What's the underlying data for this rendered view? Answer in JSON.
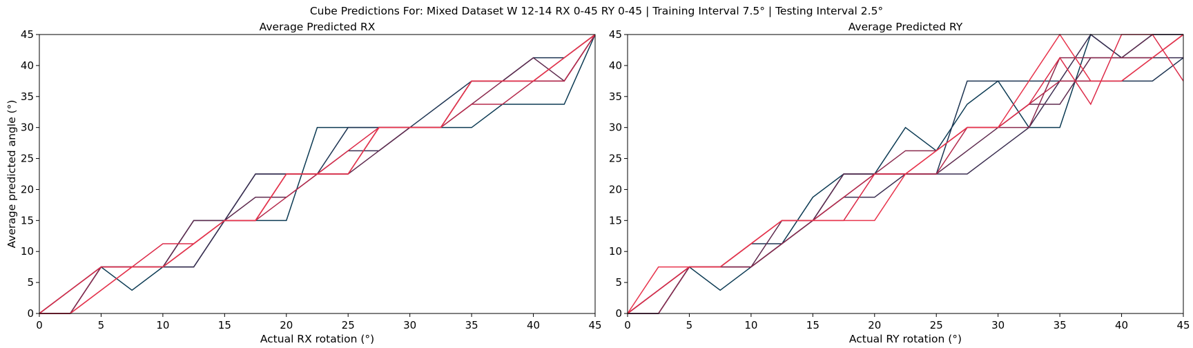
{
  "suptitle": "Cube Predictions For: Mixed Dataset W 12-14 RX 0-45 RY 0-45 | Training Interval 7.5° | Testing Interval 2.5°",
  "chart_data": [
    {
      "type": "line",
      "title": "Average Predicted RX",
      "xlabel": "Actual RX rotation (°)",
      "ylabel": "Average predicted angle (°)",
      "xlim": [
        0,
        45
      ],
      "ylim": [
        0,
        45
      ],
      "xticks": [
        0,
        5,
        10,
        15,
        20,
        25,
        30,
        35,
        40,
        45
      ],
      "yticks": [
        0,
        5,
        10,
        15,
        20,
        25,
        30,
        35,
        40,
        45
      ],
      "grid": false,
      "x": [
        0,
        2.5,
        5,
        7.5,
        10,
        12.5,
        15,
        17.5,
        20,
        22.5,
        25,
        27.5,
        30,
        32.5,
        35,
        37.5,
        40,
        42.5,
        45
      ],
      "series": [
        {
          "color": "#0b3a53",
          "values": [
            0,
            3.75,
            7.5,
            3.75,
            7.5,
            7.5,
            15,
            15,
            15,
            30,
            30,
            30,
            30,
            30,
            30,
            33.75,
            33.75,
            33.75,
            45
          ]
        },
        {
          "color": "#1d3452",
          "values": [
            0,
            0,
            7.5,
            7.5,
            7.5,
            15,
            15,
            22.5,
            22.5,
            22.5,
            30,
            30,
            30,
            33.75,
            37.5,
            37.5,
            41.25,
            41.25,
            45
          ]
        },
        {
          "color": "#3a2d50",
          "values": [
            0,
            0,
            7.5,
            7.5,
            7.5,
            7.5,
            15,
            22.5,
            22.5,
            22.5,
            26.25,
            26.25,
            30,
            30,
            37.5,
            37.5,
            37.5,
            41.25,
            45
          ]
        },
        {
          "color": "#5e2a4e",
          "values": [
            0,
            3.75,
            7.5,
            7.5,
            7.5,
            15,
            15,
            18.75,
            18.75,
            22.5,
            22.5,
            26.25,
            30,
            30,
            37.5,
            37.5,
            41.25,
            37.5,
            45
          ]
        },
        {
          "color": "#8a2a4e",
          "values": [
            0,
            0,
            7.5,
            7.5,
            7.5,
            11.25,
            15,
            15,
            22.5,
            22.5,
            22.5,
            30,
            30,
            30,
            33.75,
            37.5,
            37.5,
            37.5,
            45
          ]
        },
        {
          "color": "#b52a4c",
          "values": [
            0,
            0,
            3.75,
            7.5,
            7.5,
            11.25,
            15,
            15,
            18.75,
            22.5,
            22.5,
            30,
            30,
            30,
            33.75,
            33.75,
            37.5,
            37.5,
            45
          ]
        },
        {
          "color": "#dc2a48",
          "values": [
            0,
            3.75,
            7.5,
            7.5,
            11.25,
            11.25,
            15,
            15,
            22.5,
            22.5,
            26.25,
            30,
            30,
            30,
            37.5,
            37.5,
            37.5,
            41.25,
            45
          ]
        },
        {
          "color": "#e8344c",
          "values": [
            0,
            0,
            3.75,
            7.5,
            7.5,
            11.25,
            15,
            15,
            22.5,
            22.5,
            22.5,
            30,
            30,
            30,
            37.5,
            37.5,
            37.5,
            41.25,
            45
          ]
        }
      ]
    },
    {
      "type": "line",
      "title": "Average Predicted RY",
      "xlabel": "Actual RY rotation (°)",
      "ylabel": "",
      "xlim": [
        0,
        45
      ],
      "ylim": [
        0,
        45
      ],
      "xticks": [
        0,
        5,
        10,
        15,
        20,
        25,
        30,
        35,
        40,
        45
      ],
      "yticks": [
        0,
        5,
        10,
        15,
        20,
        25,
        30,
        35,
        40,
        45
      ],
      "grid": false,
      "x": [
        0,
        2.5,
        5,
        7.5,
        10,
        12.5,
        15,
        17.5,
        20,
        22.5,
        25,
        27.5,
        30,
        32.5,
        35,
        37.5,
        40,
        42.5,
        45
      ],
      "series": [
        {
          "color": "#0b3a53",
          "values": [
            0,
            3.75,
            7.5,
            3.75,
            7.5,
            11.25,
            18.75,
            22.5,
            22.5,
            30,
            26.25,
            33.75,
            37.5,
            30,
            30,
            45,
            41.25,
            45,
            45
          ]
        },
        {
          "color": "#1d3452",
          "values": [
            0,
            0,
            7.5,
            7.5,
            11.25,
            11.25,
            15,
            22.5,
            22.5,
            22.5,
            22.5,
            37.5,
            37.5,
            37.5,
            37.5,
            37.5,
            37.5,
            37.5,
            41.25
          ]
        },
        {
          "color": "#3a2d50",
          "values": [
            0,
            0,
            7.5,
            7.5,
            7.5,
            11.25,
            15,
            18.75,
            18.75,
            22.5,
            22.5,
            22.5,
            26.25,
            30,
            37.5,
            45,
            41.25,
            41.25,
            41.25
          ]
        },
        {
          "color": "#5e2a4e",
          "values": [
            0,
            3.75,
            7.5,
            7.5,
            7.5,
            15,
            15,
            22.5,
            22.5,
            22.5,
            22.5,
            26.25,
            30,
            33.75,
            33.75,
            41.25,
            41.25,
            45,
            45
          ]
        },
        {
          "color": "#8a2a4e",
          "values": [
            0,
            0,
            7.5,
            7.5,
            7.5,
            11.25,
            15,
            18.75,
            22.5,
            26.25,
            26.25,
            30,
            30,
            30,
            41.25,
            41.25,
            41.25,
            41.25,
            45
          ]
        },
        {
          "color": "#b52a4c",
          "values": [
            0,
            3.75,
            7.5,
            7.5,
            11.25,
            15,
            15,
            18.75,
            22.5,
            22.5,
            22.5,
            30,
            30,
            33.75,
            37.5,
            37.5,
            37.5,
            41.25,
            45
          ]
        },
        {
          "color": "#dc2a48",
          "values": [
            0,
            3.75,
            7.5,
            7.5,
            11.25,
            15,
            15,
            15,
            22.5,
            22.5,
            26.25,
            30,
            30,
            33.75,
            41.25,
            33.75,
            45,
            45,
            37.5
          ]
        },
        {
          "color": "#e8344c",
          "values": [
            0,
            7.5,
            7.5,
            7.5,
            11.25,
            15,
            15,
            15,
            15,
            22.5,
            26.25,
            30,
            30,
            37.5,
            45,
            37.5,
            37.5,
            41.25,
            45
          ]
        }
      ]
    }
  ]
}
